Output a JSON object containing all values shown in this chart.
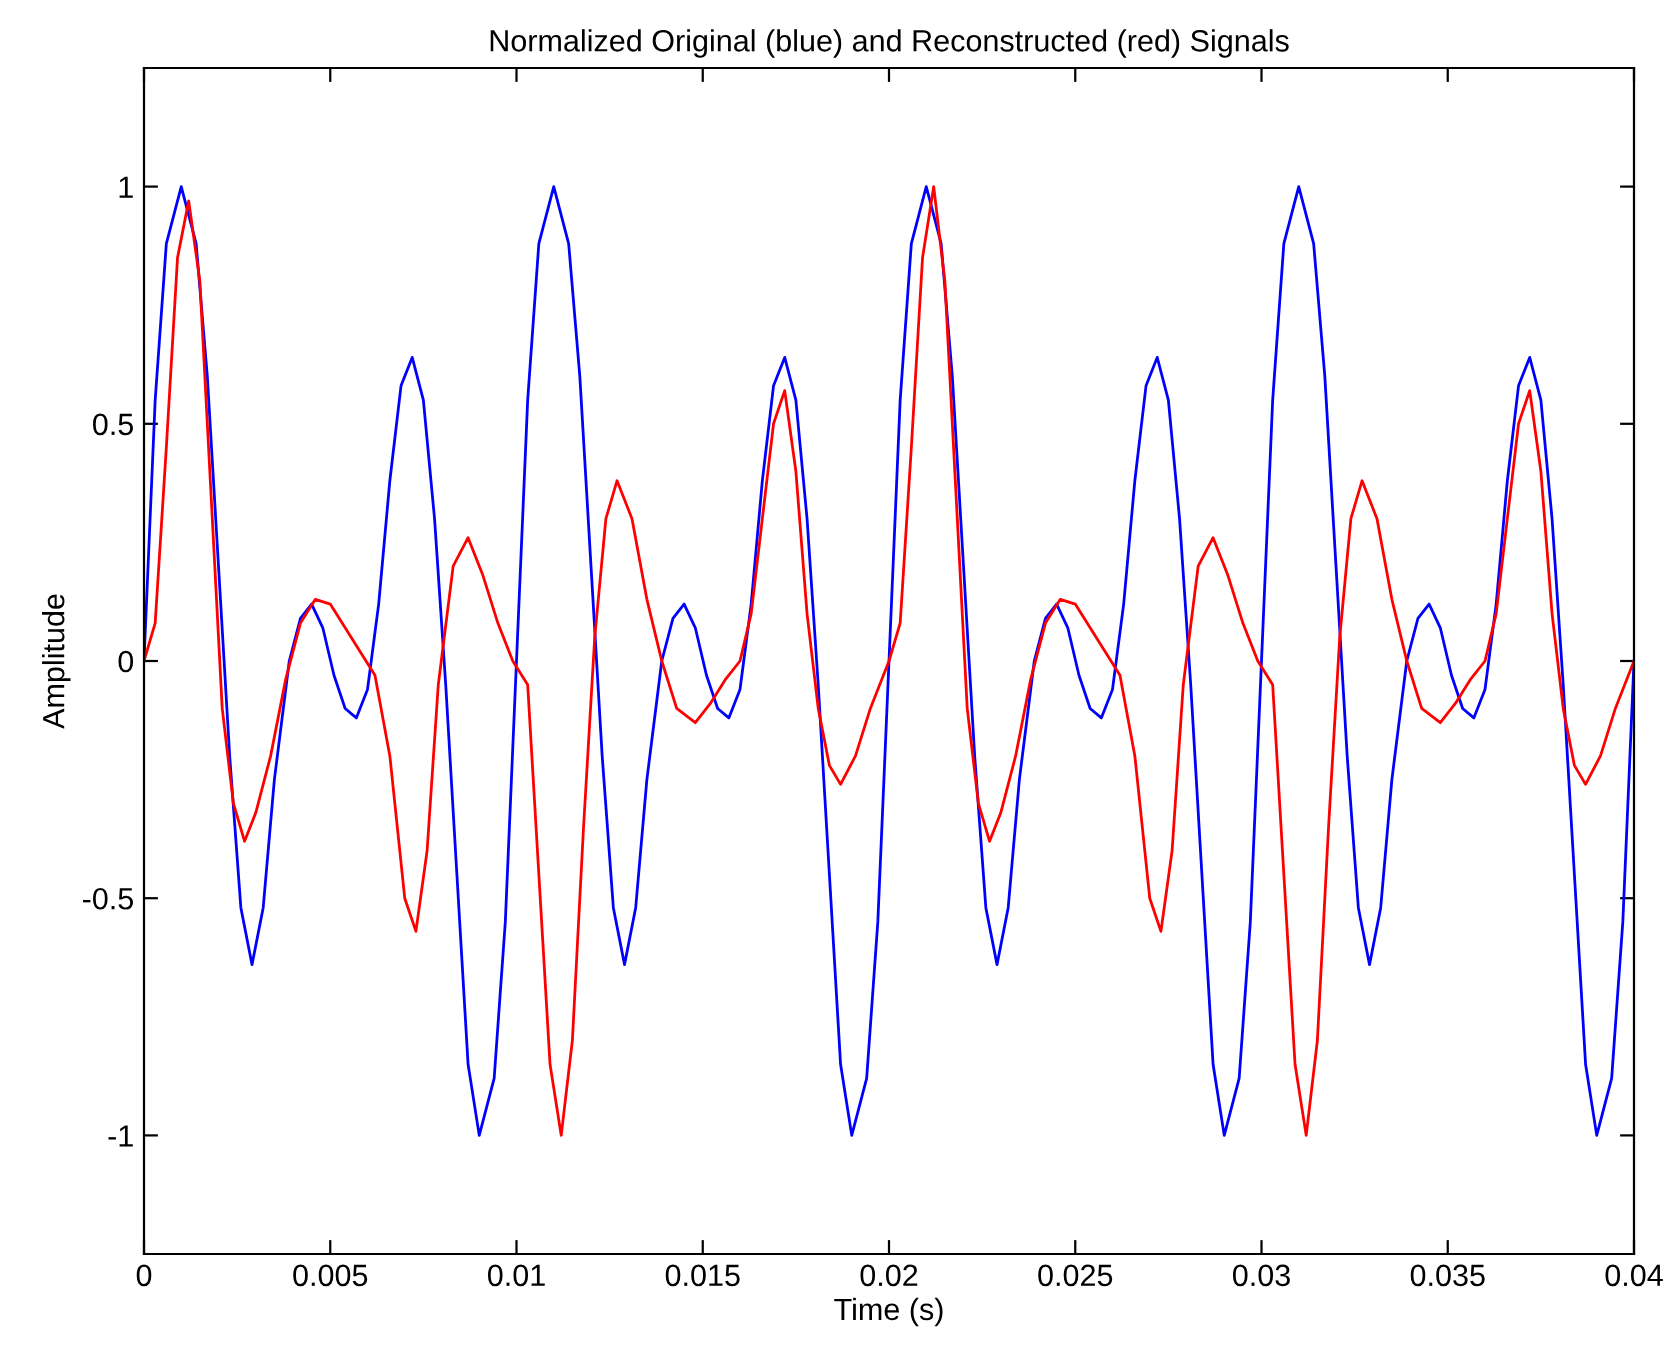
{
  "chart_data": {
    "type": "line",
    "title": "Normalized Original (blue) and Reconstructed (red) Signals",
    "xlabel": "Time (s)",
    "ylabel": "Amplitude",
    "xlim": [
      0,
      0.04
    ],
    "xticks": [
      0,
      0.005,
      0.01,
      0.015,
      0.02,
      0.025,
      0.03,
      0.035,
      0.04
    ],
    "ylim": [
      -1.25,
      1.25
    ],
    "yticks": [
      -1,
      -0.5,
      0,
      0.5,
      1
    ],
    "grid": false,
    "line_style": "solid",
    "series": [
      {
        "color": "#0000ff",
        "x": [
          0,
          0.0003,
          0.0006,
          0.001,
          0.0014,
          0.0017,
          0.002,
          0.0023,
          0.0026,
          0.0029,
          0.0032,
          0.0035,
          0.0039,
          0.0042,
          0.0045,
          0.0048,
          0.0051,
          0.0054,
          0.0057,
          0.006,
          0.0063,
          0.0066,
          0.0069,
          0.0072,
          0.0075,
          0.0078,
          0.0081,
          0.0084,
          0.0087,
          0.009,
          0.0094,
          0.0097,
          0.01,
          0.0103,
          0.0106,
          0.011,
          0.0114,
          0.0117,
          0.012,
          0.0123,
          0.0126,
          0.0129,
          0.0132,
          0.0135,
          0.0139,
          0.0142,
          0.0145,
          0.0148,
          0.0151,
          0.0154,
          0.0157,
          0.016,
          0.0163,
          0.0166,
          0.0169,
          0.0172,
          0.0175,
          0.0178,
          0.0181,
          0.0184,
          0.0187,
          0.019,
          0.0194,
          0.0197,
          0.02,
          0.0203,
          0.0206,
          0.021,
          0.0214,
          0.0217,
          0.022,
          0.0223,
          0.0226,
          0.0229,
          0.0232,
          0.0235,
          0.0239,
          0.0242,
          0.0245,
          0.0248,
          0.0251,
          0.0254,
          0.0257,
          0.026,
          0.0263,
          0.0266,
          0.0269,
          0.0272,
          0.0275,
          0.0278,
          0.0281,
          0.0284,
          0.0287,
          0.029,
          0.0294,
          0.0297,
          0.03,
          0.0303,
          0.0306,
          0.031,
          0.0314,
          0.0317,
          0.032,
          0.0323,
          0.0326,
          0.0329,
          0.0332,
          0.0335,
          0.0339,
          0.0342,
          0.0345,
          0.0348,
          0.0351,
          0.0354,
          0.0357,
          0.036,
          0.0363,
          0.0366,
          0.0369,
          0.0372,
          0.0375,
          0.0378,
          0.0381,
          0.0384,
          0.0387,
          0.039,
          0.0394,
          0.0397,
          0.04
        ],
        "values": [
          0,
          0.55,
          0.88,
          1,
          0.88,
          0.6,
          0.2,
          -0.2,
          -0.52,
          -0.64,
          -0.52,
          -0.25,
          0,
          0.09,
          0.12,
          0.07,
          -0.03,
          -0.1,
          -0.12,
          -0.06,
          0.12,
          0.38,
          0.58,
          0.64,
          0.55,
          0.3,
          -0.05,
          -0.45,
          -0.85,
          -1,
          -0.88,
          -0.55,
          0,
          0.55,
          0.88,
          1,
          0.88,
          0.6,
          0.2,
          -0.2,
          -0.52,
          -0.64,
          -0.52,
          -0.25,
          0,
          0.09,
          0.12,
          0.07,
          -0.03,
          -0.1,
          -0.12,
          -0.06,
          0.12,
          0.38,
          0.58,
          0.64,
          0.55,
          0.3,
          -0.05,
          -0.45,
          -0.85,
          -1,
          -0.88,
          -0.55,
          0,
          0.55,
          0.88,
          1,
          0.88,
          0.6,
          0.2,
          -0.2,
          -0.52,
          -0.64,
          -0.52,
          -0.25,
          0,
          0.09,
          0.12,
          0.07,
          -0.03,
          -0.1,
          -0.12,
          -0.06,
          0.12,
          0.38,
          0.58,
          0.64,
          0.55,
          0.3,
          -0.05,
          -0.45,
          -0.85,
          -1,
          -0.88,
          -0.55,
          0,
          0.55,
          0.88,
          1,
          0.88,
          0.6,
          0.2,
          -0.2,
          -0.52,
          -0.64,
          -0.52,
          -0.25,
          0,
          0.09,
          0.12,
          0.07,
          -0.03,
          -0.1,
          -0.12,
          -0.06,
          0.12,
          0.38,
          0.58,
          0.64,
          0.55,
          0.3,
          -0.05,
          -0.45,
          -0.85,
          -1,
          -0.88,
          -0.55,
          0
        ]
      },
      {
        "color": "#ff0000",
        "x": [
          0,
          0.0003,
          0.0006,
          0.0009,
          0.0012,
          0.0015,
          0.0018,
          0.0021,
          0.0024,
          0.0027,
          0.003,
          0.0034,
          0.0038,
          0.0042,
          0.0046,
          0.005,
          0.0054,
          0.0058,
          0.0062,
          0.0066,
          0.007,
          0.0073,
          0.0076,
          0.0079,
          0.0083,
          0.0087,
          0.0091,
          0.0095,
          0.0099,
          0.0103,
          0.0106,
          0.0109,
          0.0112,
          0.0115,
          0.0118,
          0.0121,
          0.0124,
          0.0127,
          0.0131,
          0.0135,
          0.0139,
          0.0143,
          0.0148,
          0.0152,
          0.0156,
          0.016,
          0.0163,
          0.0166,
          0.0169,
          0.0172,
          0.0175,
          0.0178,
          0.0181,
          0.0184,
          0.0187,
          0.0191,
          0.0195,
          0.02,
          0.0203,
          0.0206,
          0.0209,
          0.0212,
          0.0215,
          0.0218,
          0.0221,
          0.0224,
          0.0227,
          0.023,
          0.0234,
          0.0238,
          0.0242,
          0.0246,
          0.025,
          0.0254,
          0.0258,
          0.0262,
          0.0266,
          0.027,
          0.0273,
          0.0276,
          0.0279,
          0.0283,
          0.0287,
          0.0291,
          0.0295,
          0.0299,
          0.0303,
          0.0306,
          0.0309,
          0.0312,
          0.0315,
          0.0318,
          0.0321,
          0.0324,
          0.0327,
          0.0331,
          0.0335,
          0.0339,
          0.0343,
          0.0348,
          0.0352,
          0.0356,
          0.036,
          0.0363,
          0.0366,
          0.0369,
          0.0372,
          0.0375,
          0.0378,
          0.0381,
          0.0384,
          0.0387,
          0.0391,
          0.0395,
          0.04
        ],
        "values": [
          0,
          0.08,
          0.45,
          0.85,
          0.97,
          0.8,
          0.35,
          -0.1,
          -0.3,
          -0.38,
          -0.32,
          -0.2,
          -0.04,
          0.08,
          0.13,
          0.12,
          0.07,
          0.02,
          -0.03,
          -0.2,
          -0.5,
          -0.57,
          -0.4,
          -0.05,
          0.2,
          0.26,
          0.18,
          0.08,
          0,
          -0.05,
          -0.45,
          -0.85,
          -1,
          -0.8,
          -0.35,
          0.05,
          0.3,
          0.38,
          0.3,
          0.13,
          0,
          -0.1,
          -0.13,
          -0.09,
          -0.04,
          0,
          0.1,
          0.3,
          0.5,
          0.57,
          0.4,
          0.1,
          -0.1,
          -0.22,
          -0.26,
          -0.2,
          -0.1,
          0,
          0.08,
          0.45,
          0.85,
          1,
          0.8,
          0.35,
          -0.1,
          -0.3,
          -0.38,
          -0.32,
          -0.2,
          -0.04,
          0.08,
          0.13,
          0.12,
          0.07,
          0.02,
          -0.03,
          -0.2,
          -0.5,
          -0.57,
          -0.4,
          -0.05,
          0.2,
          0.26,
          0.18,
          0.08,
          0,
          -0.05,
          -0.45,
          -0.85,
          -1,
          -0.8,
          -0.35,
          0.05,
          0.3,
          0.38,
          0.3,
          0.13,
          0,
          -0.1,
          -0.13,
          -0.09,
          -0.04,
          0,
          0.1,
          0.3,
          0.5,
          0.57,
          0.4,
          0.1,
          -0.1,
          -0.22,
          -0.26,
          -0.2,
          -0.1,
          0
        ]
      }
    ]
  }
}
